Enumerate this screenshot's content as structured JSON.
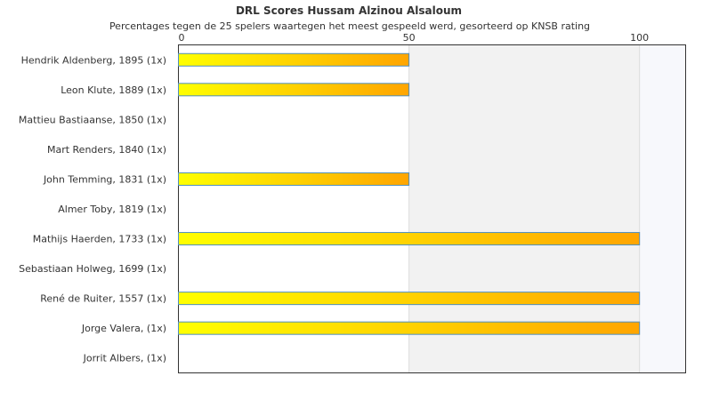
{
  "chart_data": {
    "type": "bar",
    "orientation": "horizontal",
    "title": "DRL Scores Hussam Alzinou Alsaloum",
    "subtitle": "Percentages tegen de 25 spelers waartegen het meest gespeeld werd, gesorteerd op KNSB rating",
    "categories": [
      "Hendrik Aldenberg, 1895 (1x)",
      "Leon Klute, 1889 (1x)",
      "Mattieu Bastiaanse, 1850 (1x)",
      "Mart Renders, 1840 (1x)",
      "John Temming, 1831 (1x)",
      "Almer Toby, 1819 (1x)",
      "Mathijs Haerden, 1733 (1x)",
      "Sebastiaan Holweg, 1699 (1x)",
      "René de Ruiter, 1557 (1x)",
      "Jorge Valera,  (1x)",
      "Jorrit Albers,  (1x)"
    ],
    "values": [
      50,
      50,
      0,
      0,
      50,
      0,
      100,
      0,
      100,
      100,
      0
    ],
    "x_ticks": [
      "0",
      "50",
      "100"
    ],
    "xlim": [
      0,
      110
    ],
    "legend": "none",
    "colors": {
      "bar_start": "#ffff00",
      "bar_end": "#ffa500",
      "bar_stroke": "#4f8fbf",
      "band_mid": "#f2f2f2",
      "band_high": "#f7f8fc"
    }
  }
}
